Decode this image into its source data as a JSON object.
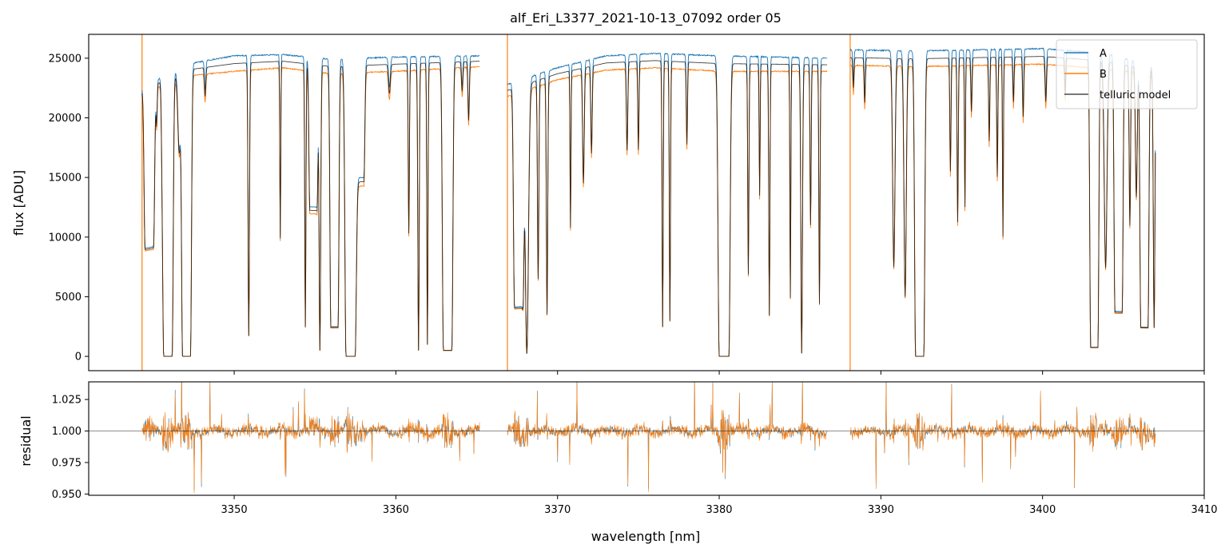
{
  "chart_data": [
    {
      "type": "line",
      "title": "alf_Eri_L3377_2021-10-13_07092  order 05",
      "xlabel": "",
      "ylabel": "flux [ADU]",
      "xlim": [
        3341,
        3410
      ],
      "ylim": [
        -1200,
        27000
      ],
      "yticks": [
        0,
        5000,
        10000,
        15000,
        20000,
        25000
      ],
      "grid": false,
      "legend_position": "top-right",
      "segments": [
        [
          3344.3,
          3365.2
        ],
        [
          3366.9,
          3386.7
        ],
        [
          3388.1,
          3407.0
        ]
      ],
      "series": [
        {
          "name": "A",
          "color": "#1f77b4"
        },
        {
          "name": "B",
          "color": "#ff7f0e"
        },
        {
          "name": "telluric model",
          "color": "#000000"
        }
      ],
      "continuum": {
        "x": [
          3344.3,
          3347,
          3350,
          3353,
          3356,
          3360,
          3365.2,
          3366.9,
          3370,
          3373,
          3376,
          3380,
          3386.7,
          3388.1,
          3392,
          3396,
          3400,
          3404,
          3407
        ],
        "a": [
          22500,
          24500,
          25200,
          25300,
          24900,
          25100,
          25200,
          22800,
          24200,
          25200,
          25400,
          25200,
          25000,
          25700,
          25600,
          25700,
          25800,
          25400,
          24200
        ],
        "b": [
          22000,
          23500,
          23900,
          24200,
          23700,
          23900,
          24300,
          21800,
          23200,
          24000,
          24200,
          23900,
          23900,
          24400,
          24300,
          24400,
          24500,
          24100,
          23600
        ]
      },
      "absorption_lines": [
        [
          3344.75,
          0.35,
          0.6
        ],
        [
          3345.2,
          0.05,
          0.15
        ],
        [
          3345.55,
          0.07,
          0.22
        ],
        [
          3345.9,
          0.35,
          1.0
        ],
        [
          3346.6,
          0.12,
          0.28
        ],
        [
          3347.05,
          0.33,
          1.0
        ],
        [
          3348.2,
          0.06,
          0.1
        ],
        [
          3350.9,
          0.06,
          0.93
        ],
        [
          3352.85,
          0.04,
          0.6
        ],
        [
          3354.4,
          0.05,
          0.9
        ],
        [
          3354.9,
          0.3,
          0.5
        ],
        [
          3355.3,
          0.07,
          0.98
        ],
        [
          3356.2,
          0.3,
          0.9
        ],
        [
          3357.2,
          0.38,
          1.0
        ],
        [
          3357.8,
          0.3,
          0.4
        ],
        [
          3359.6,
          0.08,
          0.1
        ],
        [
          3360.8,
          0.05,
          0.58
        ],
        [
          3361.4,
          0.06,
          0.98
        ],
        [
          3361.95,
          0.05,
          0.96
        ],
        [
          3363.2,
          0.35,
          0.98
        ],
        [
          3364.1,
          0.06,
          0.1
        ],
        [
          3364.5,
          0.06,
          0.2
        ],
        [
          3367.6,
          0.35,
          0.82
        ],
        [
          3368.1,
          0.14,
          0.99
        ],
        [
          3368.8,
          0.06,
          0.72
        ],
        [
          3369.35,
          0.06,
          0.85
        ],
        [
          3370.8,
          0.04,
          0.55
        ],
        [
          3371.6,
          0.07,
          0.4
        ],
        [
          3372.1,
          0.06,
          0.3
        ],
        [
          3374.3,
          0.06,
          0.3
        ],
        [
          3375.0,
          0.05,
          0.3
        ],
        [
          3376.5,
          0.05,
          0.9
        ],
        [
          3376.95,
          0.05,
          0.88
        ],
        [
          3378.0,
          0.05,
          0.28
        ],
        [
          3380.3,
          0.4,
          1.0
        ],
        [
          3381.8,
          0.05,
          0.72
        ],
        [
          3382.5,
          0.04,
          0.45
        ],
        [
          3383.1,
          0.05,
          0.86
        ],
        [
          3384.4,
          0.04,
          0.8
        ],
        [
          3385.1,
          0.07,
          0.99
        ],
        [
          3385.65,
          0.05,
          0.55
        ],
        [
          3386.2,
          0.05,
          0.82
        ],
        [
          3388.3,
          0.05,
          0.1
        ],
        [
          3389.0,
          0.05,
          0.15
        ],
        [
          3390.8,
          0.1,
          0.7
        ],
        [
          3391.5,
          0.1,
          0.8
        ],
        [
          3392.4,
          0.34,
          1.0
        ],
        [
          3394.3,
          0.05,
          0.38
        ],
        [
          3394.75,
          0.05,
          0.55
        ],
        [
          3395.2,
          0.04,
          0.5
        ],
        [
          3395.6,
          0.05,
          0.18
        ],
        [
          3396.7,
          0.05,
          0.28
        ],
        [
          3397.2,
          0.05,
          0.4
        ],
        [
          3397.55,
          0.04,
          0.6
        ],
        [
          3398.2,
          0.05,
          0.15
        ],
        [
          3398.8,
          0.05,
          0.2
        ],
        [
          3400.2,
          0.06,
          0.15
        ],
        [
          3401.4,
          0.05,
          0.12
        ],
        [
          3403.2,
          0.3,
          0.97
        ],
        [
          3403.9,
          0.12,
          0.7
        ],
        [
          3404.7,
          0.3,
          0.85
        ],
        [
          3405.4,
          0.06,
          0.55
        ],
        [
          3405.8,
          0.08,
          0.45
        ],
        [
          3406.3,
          0.3,
          0.9
        ],
        [
          3406.9,
          0.07,
          0.9
        ]
      ]
    },
    {
      "type": "line",
      "title": "",
      "xlabel": "wavelength [nm]",
      "ylabel": "residual",
      "xlim": [
        3341,
        3410
      ],
      "ylim": [
        0.949,
        1.039
      ],
      "xticks": [
        3350,
        3360,
        3370,
        3380,
        3390,
        3400,
        3410
      ],
      "yticks": [
        "0.950",
        "0.975",
        "1.000",
        "1.025"
      ],
      "reference_line": 1.0,
      "grid": false,
      "series": [
        {
          "name": "A",
          "color": "#1f77b4"
        },
        {
          "name": "B",
          "color": "#ff7f0e"
        }
      ]
    }
  ]
}
